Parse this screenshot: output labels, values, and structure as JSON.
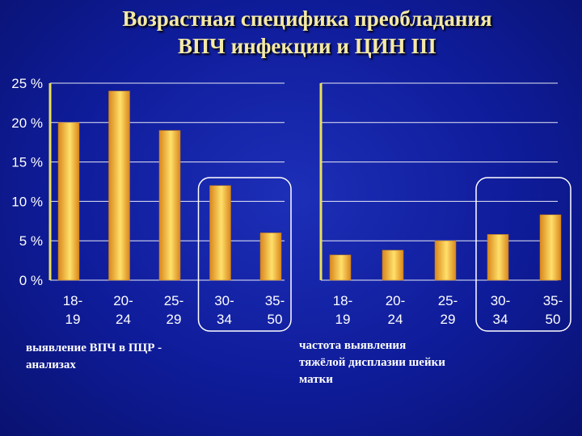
{
  "title": "Возрастная специфика преобладания\nВПЧ инфекции и ЦИН III",
  "colors": {
    "background": "#0f1c9a",
    "title": "#f4e9a6",
    "bar_light": "#ffe06a",
    "bar_dark": "#d9861c",
    "axis": "#e8e05a",
    "grid": "#ffffff",
    "text": "#ffffff",
    "highlight_box": "#ffffff"
  },
  "chart_data": [
    {
      "type": "bar",
      "title": "",
      "categories": [
        "18-\n19",
        "20-\n24",
        "25-\n29",
        "30-\n34",
        "35-\n50"
      ],
      "values": [
        20,
        24,
        19,
        12,
        6
      ],
      "ylim": [
        0,
        25
      ],
      "yticks": [
        "0 %",
        "5 %",
        "10 %",
        "15 %",
        "20 %",
        "25 %"
      ],
      "grid": true,
      "caption": "выявление ВПЧ в ПЦР -\nанализах",
      "highlight": [
        "30-\n34",
        "35-\n50"
      ]
    },
    {
      "type": "bar",
      "title": "",
      "categories": [
        "18-\n19",
        "20-\n24",
        "25-\n29",
        "30-\n34",
        "35-\n50"
      ],
      "values": [
        3.2,
        3.8,
        5,
        5.8,
        8.3
      ],
      "ylim": [
        0,
        25
      ],
      "grid": true,
      "caption": "частота выявления\nтяжёлой дисплазии шейки\nматки",
      "highlight": [
        "30-\n34",
        "35-\n50"
      ]
    }
  ]
}
